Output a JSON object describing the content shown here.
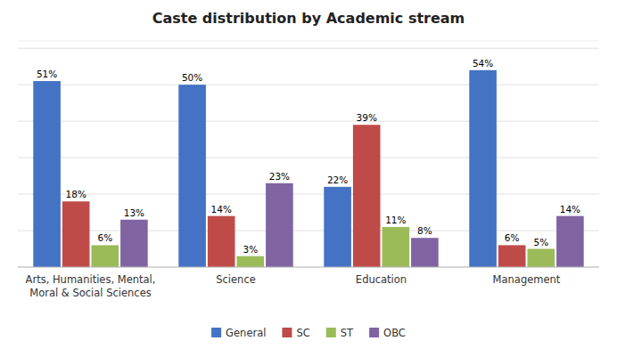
{
  "chart_data": {
    "type": "bar",
    "title": "Caste distribution by Academic stream",
    "categories": [
      "Arts, Humanities, Mental,\nMoral & Social Sciences",
      "Science",
      "Education",
      "Management"
    ],
    "series": [
      {
        "name": "General",
        "color": "#4472C4",
        "values": [
          51,
          50,
          22,
          54
        ],
        "value_labels": [
          "51%",
          "50%",
          "22%",
          "54%"
        ]
      },
      {
        "name": "SC",
        "color": "#BE4B48",
        "values": [
          18,
          14,
          39,
          6
        ],
        "value_labels": [
          "18%",
          "14%",
          "39%",
          "6%"
        ]
      },
      {
        "name": "ST",
        "color": "#9BBB59",
        "values": [
          6,
          3,
          11,
          5
        ],
        "value_labels": [
          "6%",
          "3%",
          "11%",
          "5%"
        ]
      },
      {
        "name": "OBC",
        "color": "#8064A2",
        "values": [
          13,
          23,
          8,
          14
        ],
        "value_labels": [
          "13%",
          "23%",
          "8%",
          "14%"
        ]
      }
    ],
    "ylim": [
      0,
      62
    ],
    "yticks": [
      0,
      10,
      20,
      30,
      40,
      50,
      60
    ],
    "grid": true,
    "tick_labels": "x",
    "data_labels": true,
    "legend": "bottom"
  }
}
